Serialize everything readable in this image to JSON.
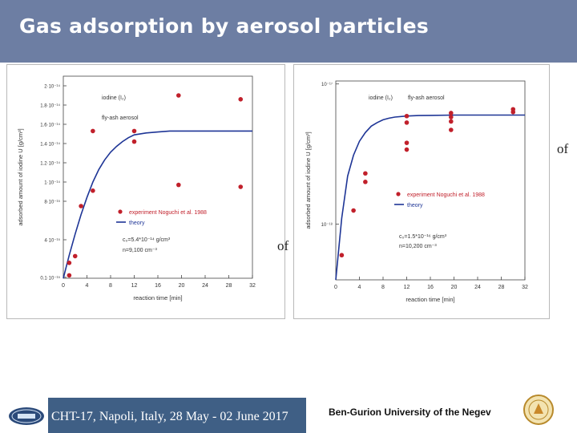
{
  "slide": {
    "title": "Gas adsorption by aerosol particles",
    "stray_text_1": "of",
    "stray_text_2": "of",
    "footer": {
      "conference": "CHT-17, Napoli, Italy, 28 May - 02 June 2017",
      "university": "Ben-Gurion University of the Negev",
      "logo_icon": "hmt-logo-icon",
      "seal_icon": "university-seal-icon"
    }
  },
  "colors": {
    "title_bar": "#6d7ea3",
    "footer_bar": "#3f5f85",
    "theory_line": "#1e3596",
    "experiment_points": "#c1202b"
  },
  "chart_data": [
    {
      "type": "scatter",
      "yscale": "linear",
      "xlabel": "reaction time [min]",
      "ylabel": "adsorbed amount of iodine U [g/cm³]",
      "xticks": [
        "0",
        "4",
        "8",
        "12",
        "16",
        "20",
        "24",
        "28",
        "32"
      ],
      "yticks": [
        "0.1·10⁻¹⁵",
        "4·10⁻¹⁵",
        "8·10⁻¹⁵",
        "1·10⁻¹⁴",
        "1.2·10⁻¹⁴",
        "1.4·10⁻¹⁴",
        "1.6·10⁻¹⁴",
        "1.8·10⁻¹⁴",
        "2·10⁻¹⁴"
      ],
      "xlim": [
        0,
        32
      ],
      "ylim": [
        0,
        2.1e-14
      ],
      "annotations": [
        "iodine (I₂)",
        "fly-ash aerosol",
        "c₀=5.4*10⁻¹⁴ g/cm³",
        "n=9,100 cm⁻³"
      ],
      "series": [
        {
          "name": "experiment Noguchi et al. 1988",
          "kind": "points",
          "x": [
            1,
            1,
            2,
            3,
            5,
            5,
            12,
            12,
            19.5,
            19.5,
            30,
            30
          ],
          "y": [
            1.6e-15,
            3e-16,
            2.3e-15,
            7.5e-15,
            9.1e-15,
            1.53e-14,
            1.53e-14,
            1.42e-14,
            9.7e-15,
            1.9e-14,
            1.86e-14,
            9.5e-15
          ]
        },
        {
          "name": "theory",
          "kind": "line",
          "x": [
            0,
            1,
            2,
            3,
            4,
            5,
            6,
            7,
            8,
            9,
            10,
            11,
            12,
            14,
            16,
            18,
            20,
            24,
            28,
            32
          ],
          "y": [
            0,
            2.4e-15,
            4.6e-15,
            6.6e-15,
            8.4e-15,
            1e-14,
            1.13e-14,
            1.23e-14,
            1.31e-14,
            1.37e-14,
            1.42e-14,
            1.46e-14,
            1.49e-14,
            1.51e-14,
            1.52e-14,
            1.53e-14,
            1.53e-14,
            1.53e-14,
            1.53e-14,
            1.53e-14
          ]
        }
      ],
      "legend": "center-right"
    },
    {
      "type": "scatter",
      "yscale": "log",
      "xlabel": "reaction time [min]",
      "ylabel": "adsorbed amount of iodine U [g/cm³]",
      "xticks": [
        "0",
        "4",
        "8",
        "12",
        "16",
        "20",
        "24",
        "28",
        "32"
      ],
      "yticks": [
        "10⁻¹⁷",
        "10⁻¹⁸"
      ],
      "xlim": [
        0,
        32
      ],
      "ylim": [
        4e-19,
        1.05e-17
      ],
      "annotations": [
        "iodine (I₂)",
        "fly-ash aerosol",
        "c₀=1.5*10⁻¹⁶ g/cm³",
        "n=10,200 cm⁻³"
      ],
      "series": [
        {
          "name": "experiment Noguchi et al. 1988",
          "kind": "points",
          "x": [
            1,
            3,
            5,
            5,
            12,
            12,
            12,
            12,
            19.5,
            19.5,
            19.5,
            19.5,
            30,
            30
          ],
          "y": [
            6e-19,
            1.25e-18,
            2.3e-18,
            2e-18,
            3.4e-18,
            3.8e-18,
            5.9e-18,
            5.3e-18,
            6.2e-18,
            5.8e-18,
            5.4e-18,
            4.7e-18,
            6.3e-18,
            6.6e-18
          ]
        },
        {
          "name": "theory",
          "kind": "line",
          "x": [
            0,
            1,
            2,
            3,
            4,
            5,
            6,
            7,
            8,
            9,
            10,
            12,
            14,
            16,
            20,
            24,
            28,
            32
          ],
          "y": [
            4e-19,
            1.1e-18,
            2.2e-18,
            3.1e-18,
            3.9e-18,
            4.5e-18,
            5e-18,
            5.3e-18,
            5.55e-18,
            5.7e-18,
            5.8e-18,
            5.9e-18,
            5.95e-18,
            5.97e-18,
            6e-18,
            6e-18,
            6e-18,
            6e-18
          ]
        }
      ],
      "legend": "center-right"
    }
  ]
}
